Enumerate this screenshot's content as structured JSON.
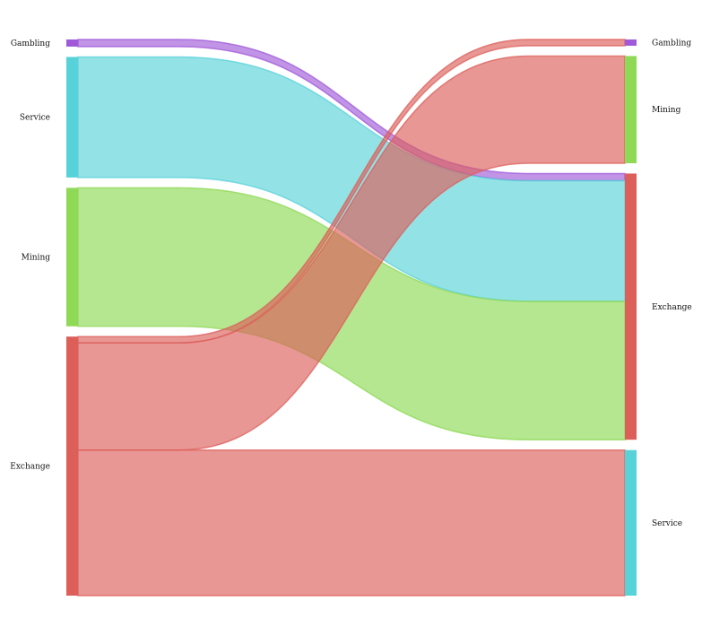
{
  "chart_data": {
    "type": "sankey",
    "title": "",
    "colors": {
      "Gambling": "#a05ad9",
      "Service": "#58d2d9",
      "Mining": "#8ed955",
      "Exchange": "#dc5f5a"
    },
    "nodes_left": [
      "Gambling",
      "Service",
      "Mining",
      "Exchange"
    ],
    "nodes_right": [
      "Gambling",
      "Mining",
      "Exchange",
      "Service"
    ],
    "flows": [
      {
        "source": "Gambling",
        "target": "Exchange",
        "value": 8
      },
      {
        "source": "Service",
        "target": "Exchange",
        "value": 135
      },
      {
        "source": "Mining",
        "target": "Exchange",
        "value": 155
      },
      {
        "source": "Exchange",
        "target": "Gambling",
        "value": 7
      },
      {
        "source": "Exchange",
        "target": "Mining",
        "value": 120
      },
      {
        "source": "Exchange",
        "target": "Service",
        "value": 163
      }
    ]
  }
}
